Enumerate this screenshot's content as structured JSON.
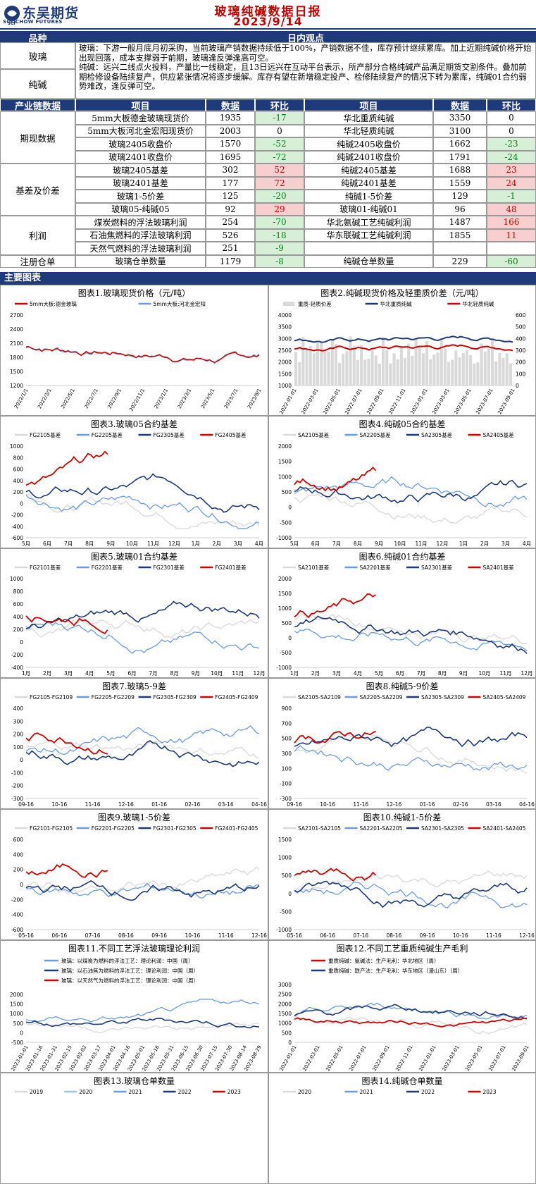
{
  "header": {
    "logo_cn": "东吴期货",
    "logo_en": "SOOCHOW FUTURES",
    "logo_mark": "SCF",
    "title": "玻璃纯碱数据日报",
    "date": "2023/9/14"
  },
  "view": {
    "col1": "品种",
    "col2": "日内观点",
    "glass_label": "玻璃",
    "soda_label": "纯碱",
    "glass_text": "玻璃：下游一般月底月初采购，当前玻璃产销数据持续低于100%，产销数据不佳，库存预计继续累库。加上近期纯碱价格开始出现回落，成本支撑弱于前期，玻璃逢反弹逢高可空。",
    "soda_text": "纯碱：远兴二线点火投料，产量比一线稳定，且13日远兴在互动平台表示，所产部分合格纯碱产品满足期货交割条件。叠加前期检修设备陆续复产，供应紧张情况将逐步缓解。库存有望在新增稳定投产、检修陆续复产的情况下转为累库，纯碱01合约弱势难改，逢反弹可空。"
  },
  "table": {
    "headers": [
      "产业链数据",
      "项目",
      "数据",
      "环比",
      "项目",
      "数据",
      "环比"
    ],
    "groups": [
      {
        "name": "期现数据",
        "rows": [
          [
            "5mm大板德金玻璃现货价",
            "1935",
            "-17",
            "华北重质纯碱",
            "3350",
            "0"
          ],
          [
            "5mm大板河北金宏阳现货价",
            "2003",
            "0",
            "华北轻质纯碱",
            "3100",
            "0"
          ],
          [
            "玻璃2405收盘价",
            "1570",
            "-52",
            "纯碱2405收盘价",
            "1662",
            "-23"
          ],
          [
            "玻璃2401收盘价",
            "1695",
            "-72",
            "纯碱2401收盘价",
            "1791",
            "-24"
          ]
        ]
      },
      {
        "name": "基差及价差",
        "rows": [
          [
            "玻璃2405基差",
            "302",
            "52",
            "纯碱2405基差",
            "1688",
            "23"
          ],
          [
            "玻璃2401基差",
            "177",
            "72",
            "纯碱2401基差",
            "1559",
            "24"
          ],
          [
            "玻璃1-5价差",
            "125",
            "-20",
            "纯碱1-5价差",
            "129",
            "-1"
          ],
          [
            "玻璃05-纯碱05",
            "92",
            "29",
            "玻璃01-纯碱01",
            "96",
            "48"
          ]
        ]
      },
      {
        "name": "利润",
        "rows": [
          [
            "煤炭燃料的浮法玻璃利润",
            "254",
            "-70",
            "华北氨碱工艺纯碱利润",
            "1487",
            "166"
          ],
          [
            "石油焦燃料的浮法玻璃利润",
            "526",
            "-18",
            "华东联碱工艺纯碱利润",
            "1855",
            "11"
          ],
          [
            "天然气燃料的浮法玻璃利润",
            "251",
            "-9",
            "",
            "",
            " "
          ]
        ]
      },
      {
        "name": "注册仓单",
        "rows": [
          [
            "玻璃仓单数量",
            "1179",
            "-8",
            "纯碱仓单数量",
            "229",
            "-60"
          ]
        ]
      }
    ]
  },
  "section_title": "主要图表",
  "colors": {
    "navy": "#1f3a7a",
    "red": "#d00000",
    "lightblue": "#6b9be0",
    "lightgray": "#d9d9d9",
    "header_red": "#c00000"
  },
  "charts": [
    {
      "title": "图表1.玻璃现货价格（元/吨）",
      "legend": [
        "5mm大板:德金玻璃",
        "5mm大板:河北金宏阳"
      ],
      "yticks": [
        "2700",
        "2400",
        "2100",
        "1800",
        "1500",
        "1200"
      ],
      "xticks": [
        "2022/1/1",
        "2022/3/1",
        "2022/5/1",
        "2022/7/1",
        "2022/9/1",
        "2022/11/1",
        "2023/1/1",
        "2023/3/1",
        "2023/5/1",
        "2023/7/1",
        "2023/9/1"
      ]
    },
    {
      "title": "图表2.纯碱现货价格及轻重质价差（元/吨）",
      "legend": [
        "重质-轻质价差",
        "华北重质纯碱",
        "华北轻质纯碱"
      ],
      "yticks": [
        "4000",
        "3500",
        "3000",
        "2500",
        "2000",
        "1500",
        "1000"
      ],
      "y2ticks": [
        "600",
        "500",
        "400",
        "300",
        "200",
        "100",
        "0"
      ],
      "xticks": [
        "2022-01-01",
        "2022-03-01",
        "2022-05-01",
        "2022-07-01",
        "2022-09-01",
        "2022-11-01",
        "2023-01-01",
        "2023-03-01",
        "2023-05-01",
        "2023-07-01",
        "2023-09-01"
      ]
    },
    {
      "title": "图表3.玻璃05合约基差",
      "legend": [
        "FG2105基差",
        "FG2205基差",
        "FG2305基差",
        "FG2405基差"
      ],
      "yticks": [
        "1000",
        "800",
        "600",
        "400",
        "200",
        "0",
        "-200",
        "-400",
        "-600"
      ],
      "xticks": [
        "5月",
        "6月",
        "7月",
        "8月",
        "9月",
        "10月",
        "11月",
        "12月",
        "1月",
        "2月",
        "3月",
        "4月"
      ]
    },
    {
      "title": "图表4.纯碱05合约基差",
      "legend": [
        "SA2105基差",
        "SA2205基差",
        "SA2305基差",
        "SA2405基差"
      ],
      "yticks": [
        "2000",
        "1500",
        "1000",
        "500",
        "0",
        "-500",
        "-1000"
      ],
      "xticks": [
        "5月",
        "6月",
        "7月",
        "8月",
        "9月",
        "10月",
        "11月",
        "12月",
        "1月",
        "2月",
        "3月",
        "4月"
      ]
    },
    {
      "title": "图表5.玻璃01合约基差",
      "legend": [
        "FG2101基差",
        "FG2201基差",
        "FG2301基差",
        "FG2401基差"
      ],
      "yticks": [
        "1000",
        "800",
        "600",
        "400",
        "200",
        "0",
        "-200",
        "-400"
      ],
      "xticks": [
        "1月",
        "2月",
        "3月",
        "4月",
        "5月",
        "6月",
        "7月",
        "8月",
        "9月",
        "10月",
        "11月",
        "12月"
      ]
    },
    {
      "title": "图表6.纯碱01合约基差",
      "legend": [
        "SA2101基差",
        "SA2201基差",
        "SA2301基差",
        "SA2401基差"
      ],
      "yticks": [
        "2000",
        "1500",
        "1000",
        "500",
        "0",
        "-500",
        "-1000"
      ],
      "xticks": [
        "1月",
        "2月",
        "3月",
        "4月",
        "5月",
        "6月",
        "7月",
        "8月",
        "9月",
        "10月",
        "11月",
        "12月"
      ]
    },
    {
      "title": "图表7.玻璃5-9差",
      "legend": [
        "FG2105-FG2109",
        "FG2205-FG2209",
        "FG2305-FG2309",
        "FG2405-FG2409"
      ],
      "yticks": [
        "400",
        "300",
        "200",
        "100",
        "0",
        "-100",
        "-200",
        "-300"
      ],
      "xticks": [
        "09-16",
        "10-16",
        "11-16",
        "12-16",
        "01-16",
        "02-16",
        "03-16",
        "04-16"
      ]
    },
    {
      "title": "图表8.纯碱5-9价差",
      "legend": [
        "SA2105-SA2109",
        "SA2205-SA2209",
        "SA2305-SA2309",
        "SA2405-SA2409"
      ],
      "yticks": [
        "900",
        "700",
        "500",
        "300",
        "100",
        "-100",
        "-300"
      ],
      "xticks": [
        "09-16",
        "10-16",
        "11-16",
        "12-16",
        "01-16",
        "02-16",
        "03-16",
        "04-16"
      ]
    },
    {
      "title": "图表9.玻璃1-5价差",
      "legend": [
        "FG2101-FG2105",
        "FG2201-FG2205",
        "FG2301-FG2305",
        "FG2401-FG2405"
      ],
      "yticks": [
        "600",
        "400",
        "200",
        "0",
        "-200",
        "-400",
        "-600"
      ],
      "xticks": [
        "05-16",
        "06-16",
        "07-16",
        "08-16",
        "09-16",
        "10-16",
        "11-16",
        "12-16"
      ]
    },
    {
      "title": "图表10.纯碱1-5价差",
      "legend": [
        "SA2101-SA2105",
        "SA2201-SA2205",
        "SA2301-SA2305",
        "SA2401-SA2405"
      ],
      "yticks": [
        "1500",
        "1000",
        "500",
        "0",
        "-500",
        "-1000"
      ],
      "xticks": [
        "05-16",
        "06-16",
        "07-16",
        "08-16",
        "09-16",
        "10-16",
        "11-16",
        "12-16"
      ]
    },
    {
      "title": "图表11.不同工艺浮法玻璃理论利润",
      "legend": [
        "玻璃：以煤炭为燃料的浮法工艺：理论利润：中国（周）",
        "玻璃：以石油焦为燃料的浮法工艺：理论利润：中国（周）",
        "玻璃：以天然气为燃料的浮法工艺：理论利润：中国（周）"
      ],
      "yticks": [
        "2000",
        "1500",
        "1000",
        "500",
        "0",
        "-500"
      ],
      "xticks": [
        "2023-01-01",
        "2023-01-16",
        "2023-01-31",
        "2023-02-15",
        "2023-03-02",
        "2023-03-17",
        "2023-04-01",
        "2023-04-16",
        "2023-05-01",
        "2023-05-16",
        "2023-05-31",
        "2023-06-15",
        "2023-06-30",
        "2023-07-15",
        "2023-07-30",
        "2023-08-14",
        "2023-08-29"
      ]
    },
    {
      "title": "图表12.不同工艺重质纯碱生产毛利",
      "legend": [
        "重质纯碱：氨碱法：生产毛利：华北地区（周）",
        "重质纯碱：联产法：生产毛利：华东地区（漫山东）（周）"
      ],
      "yticks": [
        "3000",
        "2500",
        "2000",
        "1500",
        "1000",
        "500",
        "0"
      ],
      "xticks": [
        "2022-01-01",
        "2022-03-01",
        "2022-05-01",
        "2022-07-01",
        "2022-09-01",
        "2022-11-01",
        "2023-01-01",
        "2023-03-01",
        "2023-05-01",
        "2023-07-01",
        "2023-09-01"
      ]
    },
    {
      "title": "图表13.玻璃仓单数量",
      "legend": [
        "2019",
        "2020",
        "2021",
        "2022",
        "2023"
      ]
    },
    {
      "title": "图表14.纯碱仓单数量",
      "legend": [
        "2020",
        "2021",
        "2022",
        "2023"
      ]
    }
  ]
}
